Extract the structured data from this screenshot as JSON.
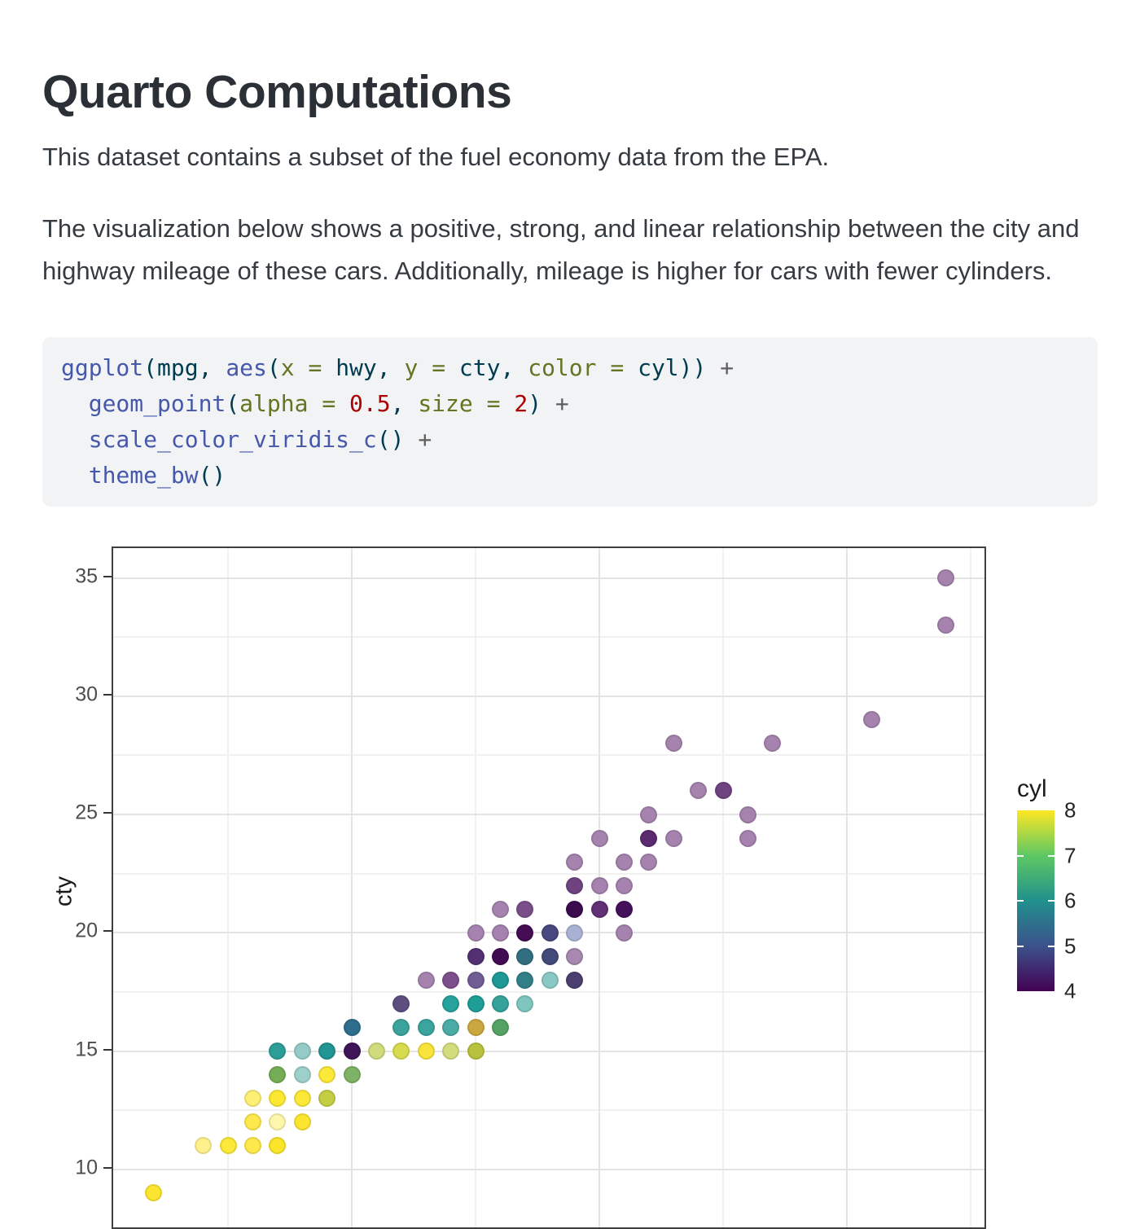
{
  "page": {
    "title": "Quarto Computations",
    "para1": "This dataset contains a subset of the fuel economy data from the EPA.",
    "para2": "The visualization below shows a positive, strong, and linear relationship between the city and highway mileage of these cars. Additionally, mileage is higher for cars with fewer cylinders."
  },
  "code": {
    "colors": {
      "fn": "#4758AB",
      "df": "#003B4F",
      "kw": "#657422",
      "num": "#AD0000",
      "op": "#5E5E5E"
    },
    "lines": [
      [
        {
          "t": "ggplot",
          "c": "fn"
        },
        {
          "t": "(",
          "c": "df"
        },
        {
          "t": "mpg",
          "c": "df"
        },
        {
          "t": ", ",
          "c": "df"
        },
        {
          "t": "aes",
          "c": "fn"
        },
        {
          "t": "(",
          "c": "df"
        },
        {
          "t": "x ",
          "c": "kw"
        },
        {
          "t": "= ",
          "c": "kw"
        },
        {
          "t": "hwy",
          "c": "df"
        },
        {
          "t": ", ",
          "c": "df"
        },
        {
          "t": "y ",
          "c": "kw"
        },
        {
          "t": "= ",
          "c": "kw"
        },
        {
          "t": "cty",
          "c": "df"
        },
        {
          "t": ", ",
          "c": "df"
        },
        {
          "t": "color ",
          "c": "kw"
        },
        {
          "t": "= ",
          "c": "kw"
        },
        {
          "t": "cyl",
          "c": "df"
        },
        {
          "t": ")) ",
          "c": "df"
        },
        {
          "t": "+",
          "c": "op"
        }
      ],
      [
        {
          "t": "  ",
          "c": "df"
        },
        {
          "t": "geom_point",
          "c": "fn"
        },
        {
          "t": "(",
          "c": "df"
        },
        {
          "t": "alpha ",
          "c": "kw"
        },
        {
          "t": "= ",
          "c": "kw"
        },
        {
          "t": "0.5",
          "c": "num"
        },
        {
          "t": ", ",
          "c": "df"
        },
        {
          "t": "size ",
          "c": "kw"
        },
        {
          "t": "= ",
          "c": "kw"
        },
        {
          "t": "2",
          "c": "num"
        },
        {
          "t": ") ",
          "c": "df"
        },
        {
          "t": "+",
          "c": "op"
        }
      ],
      [
        {
          "t": "  ",
          "c": "df"
        },
        {
          "t": "scale_color_viridis_c",
          "c": "fn"
        },
        {
          "t": "() ",
          "c": "df"
        },
        {
          "t": "+",
          "c": "op"
        }
      ],
      [
        {
          "t": "  ",
          "c": "df"
        },
        {
          "t": "theme_bw",
          "c": "fn"
        },
        {
          "t": "()",
          "c": "df"
        }
      ]
    ]
  },
  "chart_data": {
    "type": "scatter",
    "x_var": "hwy",
    "y_var": "cty",
    "color_var": "cyl",
    "ylabel": "cty",
    "y_ticks": [
      35,
      30,
      25,
      20,
      15,
      10
    ],
    "x_gridlines": {
      "major": [
        20,
        30,
        40
      ],
      "minor": [
        15,
        25,
        35,
        45
      ]
    },
    "y_gridlines": {
      "major": [
        10,
        15,
        20,
        25,
        30,
        35
      ],
      "minor": [
        12.5,
        17.5,
        22.5,
        27.5,
        32.5
      ]
    },
    "x_domain_visible": [
      10.5,
      45.6
    ],
    "y_domain_visible": [
      7.7,
      36.25
    ],
    "grid": true,
    "legend": {
      "title": "cyl",
      "position": "right",
      "tick_labels": [
        8,
        7,
        6,
        5,
        4
      ],
      "inner_ticks": [
        5,
        6,
        7
      ],
      "value_range": [
        4,
        8
      ],
      "viridis_stops": [
        "#FDE725",
        "#5DC863",
        "#21908C",
        "#3B528B",
        "#440154"
      ]
    },
    "cyl_base_colors": {
      "4": "#440154",
      "5": "#3B528B",
      "6": "#21908C",
      "8": "#FDE725"
    },
    "point_alpha": 0.5,
    "point_size": 2,
    "points": [
      {
        "hwy": 44,
        "cty": 35,
        "cyl": 4,
        "color": "#A583AE"
      },
      {
        "hwy": 44,
        "cty": 33,
        "cyl": 4,
        "color": "#A583AE"
      },
      {
        "hwy": 41,
        "cty": 29,
        "cyl": 4,
        "color": "#A583AE"
      },
      {
        "hwy": 33,
        "cty": 28,
        "cyl": 4,
        "color": "#A583AE"
      },
      {
        "hwy": 37,
        "cty": 28,
        "cyl": 4,
        "color": "#A583AE"
      },
      {
        "hwy": 34,
        "cty": 26,
        "cyl": 4,
        "color": "#A583AE"
      },
      {
        "hwy": 35,
        "cty": 26,
        "cyl": 4,
        "color": "#6F4380"
      },
      {
        "hwy": 32,
        "cty": 25,
        "cyl": 4,
        "color": "#A583AE"
      },
      {
        "hwy": 36,
        "cty": 25,
        "cyl": 4,
        "color": "#A583AE"
      },
      {
        "hwy": 30,
        "cty": 24,
        "cyl": 4,
        "color": "#A583AE"
      },
      {
        "hwy": 32,
        "cty": 24,
        "cyl": 4,
        "color": "#5C2A6E"
      },
      {
        "hwy": 33,
        "cty": 24,
        "cyl": 4,
        "color": "#A583AE"
      },
      {
        "hwy": 36,
        "cty": 24,
        "cyl": 4,
        "color": "#A583AE"
      },
      {
        "hwy": 29,
        "cty": 23,
        "cyl": 4,
        "color": "#A583AE"
      },
      {
        "hwy": 31,
        "cty": 23,
        "cyl": 4,
        "color": "#A583AE"
      },
      {
        "hwy": 32,
        "cty": 23,
        "cyl": 4,
        "color": "#A583AE"
      },
      {
        "hwy": 29,
        "cty": 22,
        "cyl": 4,
        "color": "#6F4380"
      },
      {
        "hwy": 30,
        "cty": 22,
        "cyl": 4,
        "color": "#A583AE"
      },
      {
        "hwy": 31,
        "cty": 22,
        "cyl": 4,
        "color": "#A583AE"
      },
      {
        "hwy": 26,
        "cty": 21,
        "cyl": 4,
        "color": "#A583AE"
      },
      {
        "hwy": 27,
        "cty": 21,
        "cyl": 4,
        "color": "#7A4E89"
      },
      {
        "hwy": 29,
        "cty": 21,
        "cyl": 4,
        "color": "#3A0C4E"
      },
      {
        "hwy": 30,
        "cty": 21,
        "cyl": 4,
        "color": "#613075"
      },
      {
        "hwy": 31,
        "cty": 21,
        "cyl": 4,
        "color": "#45115A"
      },
      {
        "hwy": 25,
        "cty": 20,
        "cyl": 4,
        "color": "#A583AE"
      },
      {
        "hwy": 26,
        "cty": 20,
        "cyl": 4,
        "color": "#A583AE"
      },
      {
        "hwy": 27,
        "cty": 20,
        "cyl": 4,
        "color": "#440D54"
      },
      {
        "hwy": 28,
        "cty": 20,
        "cyl": null,
        "color": "#4A4880"
      },
      {
        "hwy": 29,
        "cty": 20,
        "cyl": 5,
        "color": "#A9B2D2"
      },
      {
        "hwy": 31,
        "cty": 20,
        "cyl": 4,
        "color": "#A583AE"
      },
      {
        "hwy": 25,
        "cty": 19,
        "cyl": null,
        "color": "#523071"
      },
      {
        "hwy": 26,
        "cty": 19,
        "cyl": 4,
        "color": "#410B52"
      },
      {
        "hwy": 27,
        "cty": 19,
        "cyl": null,
        "color": "#316F80"
      },
      {
        "hwy": 28,
        "cty": 19,
        "cyl": null,
        "color": "#414A79"
      },
      {
        "hwy": 29,
        "cty": 19,
        "cyl": 4,
        "color": "#A888B0"
      },
      {
        "hwy": 23,
        "cty": 18,
        "cyl": 4,
        "color": "#A583AE"
      },
      {
        "hwy": 24,
        "cty": 18,
        "cyl": 4,
        "color": "#7E4F8D"
      },
      {
        "hwy": 25,
        "cty": 18,
        "cyl": null,
        "color": "#6F5E94"
      },
      {
        "hwy": 26,
        "cty": 18,
        "cyl": 6,
        "color": "#1E9894"
      },
      {
        "hwy": 27,
        "cty": 18,
        "cyl": 6,
        "color": "#337F88"
      },
      {
        "hwy": 28,
        "cty": 18,
        "cyl": 6,
        "color": "#8AC8C5"
      },
      {
        "hwy": 29,
        "cty": 18,
        "cyl": null,
        "color": "#4A3F70"
      },
      {
        "hwy": 22,
        "cty": 17,
        "cyl": null,
        "color": "#5D4E80"
      },
      {
        "hwy": 24,
        "cty": 17,
        "cyl": 6,
        "color": "#27A29C"
      },
      {
        "hwy": 25,
        "cty": 17,
        "cyl": 6,
        "color": "#1F9D97"
      },
      {
        "hwy": 26,
        "cty": 17,
        "cyl": 6,
        "color": "#36A29B"
      },
      {
        "hwy": 27,
        "cty": 17,
        "cyl": 6,
        "color": "#7FC5C0"
      },
      {
        "hwy": 20,
        "cty": 16,
        "cyl": null,
        "color": "#2E6E8C"
      },
      {
        "hwy": 22,
        "cty": 16,
        "cyl": 6,
        "color": "#3BA39B"
      },
      {
        "hwy": 23,
        "cty": 16,
        "cyl": 6,
        "color": "#3AA49D"
      },
      {
        "hwy": 24,
        "cty": 16,
        "cyl": 6,
        "color": "#4BACA6"
      },
      {
        "hwy": 25,
        "cty": 16,
        "cyl": null,
        "color": "#CBA83F"
      },
      {
        "hwy": 26,
        "cty": 16,
        "cyl": null,
        "color": "#55A265"
      },
      {
        "hwy": 17,
        "cty": 15,
        "cyl": 6,
        "color": "#2D9D97"
      },
      {
        "hwy": 18,
        "cty": 15,
        "cyl": 6,
        "color": "#94CBC7"
      },
      {
        "hwy": 19,
        "cty": 15,
        "cyl": 6,
        "color": "#219591"
      },
      {
        "hwy": 20,
        "cty": 15,
        "cyl": 4,
        "color": "#3F1458"
      },
      {
        "hwy": 21,
        "cty": 15,
        "cyl": 8,
        "color": "#CFDB7C"
      },
      {
        "hwy": 22,
        "cty": 15,
        "cyl": 8,
        "color": "#D6DC4E"
      },
      {
        "hwy": 23,
        "cty": 15,
        "cyl": 8,
        "color": "#F8E43C"
      },
      {
        "hwy": 24,
        "cty": 15,
        "cyl": 8,
        "color": "#D3DC7D"
      },
      {
        "hwy": 25,
        "cty": 15,
        "cyl": null,
        "color": "#B8C23F"
      },
      {
        "hwy": 17,
        "cty": 14,
        "cyl": null,
        "color": "#74AD56"
      },
      {
        "hwy": 18,
        "cty": 14,
        "cyl": 6,
        "color": "#9ED0CB"
      },
      {
        "hwy": 19,
        "cty": 14,
        "cyl": 8,
        "color": "#FCE838"
      },
      {
        "hwy": 20,
        "cty": 14,
        "cyl": null,
        "color": "#7EB266"
      },
      {
        "hwy": 16,
        "cty": 13,
        "cyl": 8,
        "color": "#FDEF76"
      },
      {
        "hwy": 17,
        "cty": 13,
        "cyl": 8,
        "color": "#FCE831"
      },
      {
        "hwy": 18,
        "cty": 13,
        "cyl": 8,
        "color": "#FCE838"
      },
      {
        "hwy": 19,
        "cty": 13,
        "cyl": null,
        "color": "#C3CE43"
      },
      {
        "hwy": 16,
        "cty": 12,
        "cyl": 8,
        "color": "#FDE94B"
      },
      {
        "hwy": 17,
        "cty": 12,
        "cyl": 8,
        "color": "#FEF6AC"
      },
      {
        "hwy": 18,
        "cty": 12,
        "cyl": 8,
        "color": "#FCE52E"
      },
      {
        "hwy": 14,
        "cty": 11,
        "cyl": 8,
        "color": "#FEF08C"
      },
      {
        "hwy": 15,
        "cty": 11,
        "cyl": 8,
        "color": "#FCE838"
      },
      {
        "hwy": 16,
        "cty": 11,
        "cyl": 8,
        "color": "#FDE94B"
      },
      {
        "hwy": 17,
        "cty": 11,
        "cyl": 8,
        "color": "#FBE52B"
      },
      {
        "hwy": 12,
        "cty": 9,
        "cyl": 8,
        "color": "#FCE52E"
      }
    ]
  }
}
